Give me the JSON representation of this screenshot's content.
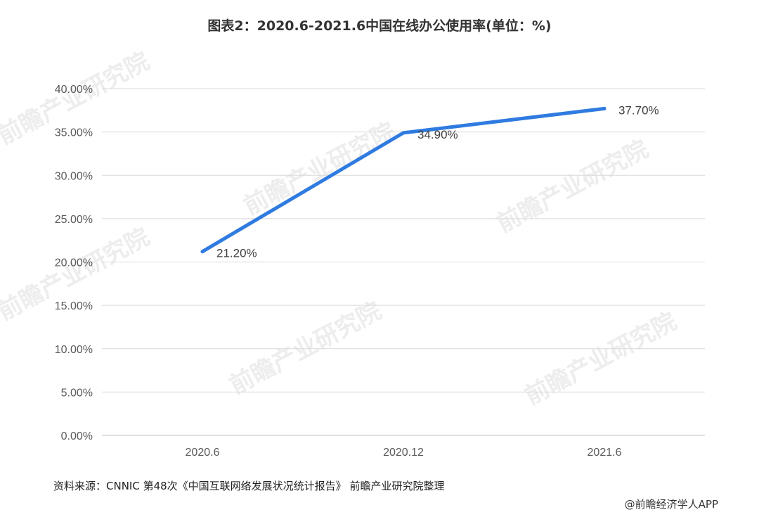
{
  "chart_data": {
    "type": "line",
    "title": "图表2：2020.6-2021.6中国在线办公使用率(单位：%)",
    "categories": [
      "2020.6",
      "2020.12",
      "2021.6"
    ],
    "series": [
      {
        "values": [
          21.2,
          34.9,
          37.7
        ],
        "labels": [
          "21.20%",
          "34.90%",
          "37.70%"
        ]
      }
    ],
    "ylim": [
      0,
      40
    ],
    "yticks": [
      "0.00%",
      "5.00%",
      "10.00%",
      "15.00%",
      "20.00%",
      "25.00%",
      "30.00%",
      "35.00%",
      "40.00%"
    ],
    "grid": true,
    "line_color": "#2f7be0"
  },
  "source": "资料来源：CNNIC 第48次《中国互联网络发展状况统计报告》 前瞻产业研究院整理",
  "credit": "@前瞻经济学人APP",
  "watermark": "前瞻产业研究院"
}
